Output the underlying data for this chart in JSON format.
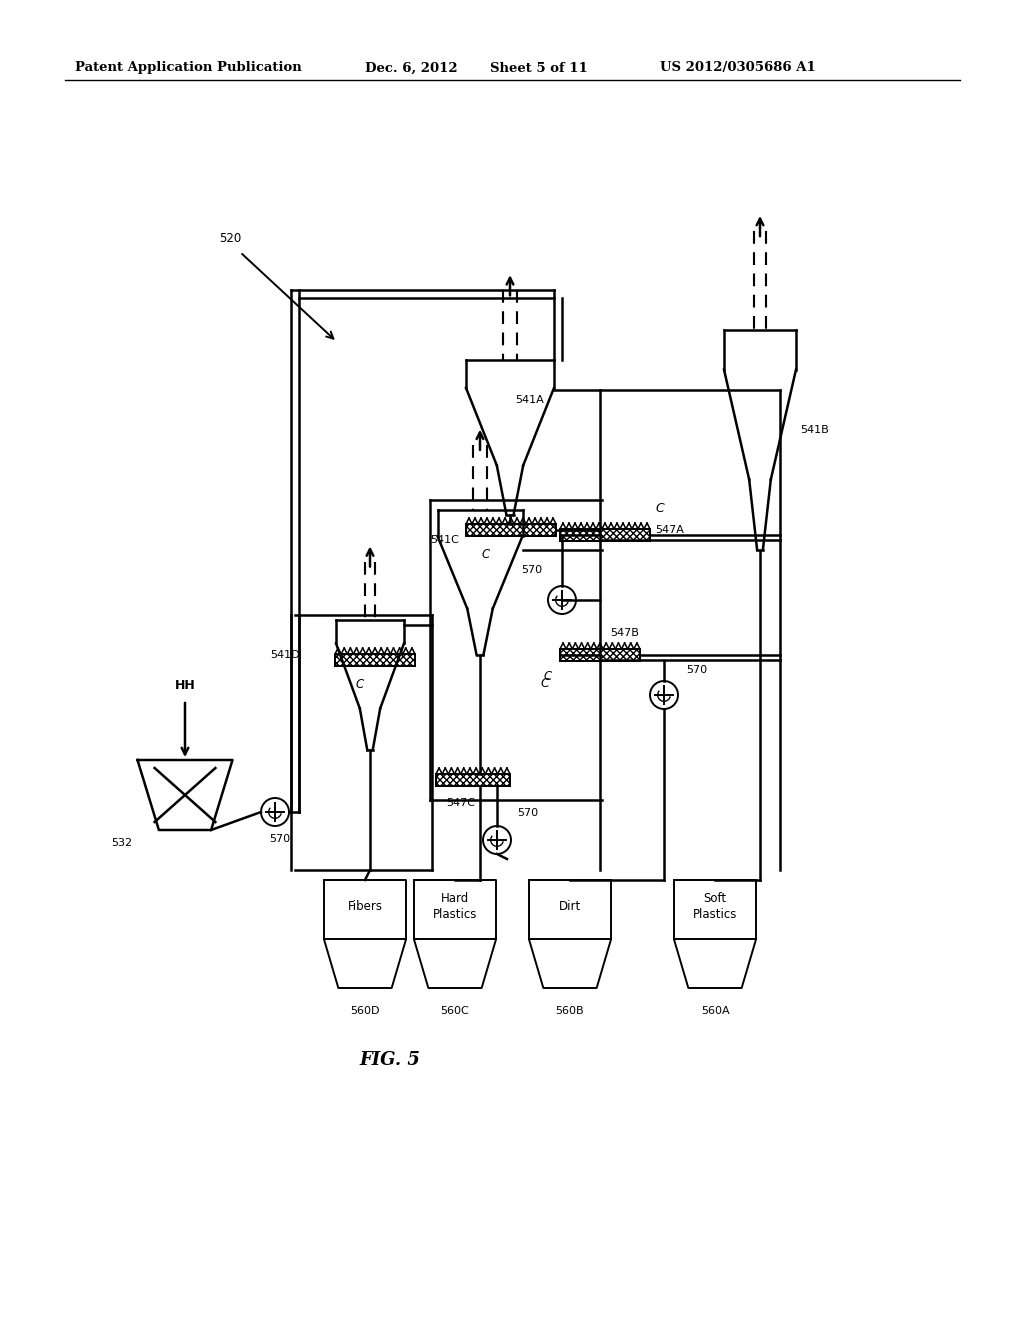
{
  "bg_color": "#ffffff",
  "header_text": "Patent Application Publication",
  "header_date": "Dec. 6, 2012",
  "header_sheet": "Sheet 5 of 11",
  "header_patent": "US 2012/0305686 A1",
  "fig_label": "FIG. 5"
}
